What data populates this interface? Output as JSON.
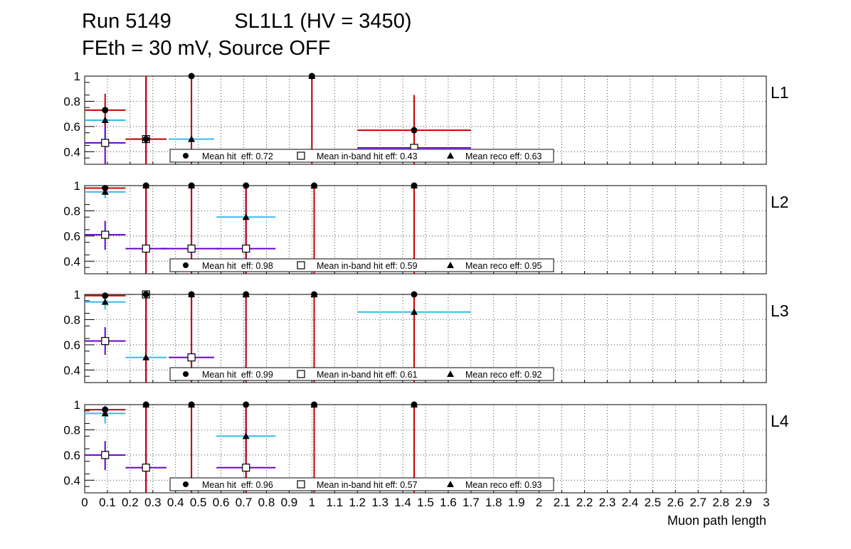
{
  "title_line1": "Run 5149           SL1L1 (HV = 3450)",
  "title_line2": "FEth = 30 mV, Source OFF",
  "colors": {
    "hit": "#cc0000",
    "inband": "#6600cc",
    "reco": "#33bbee",
    "marker": "#000000"
  },
  "chart_data": {
    "type": "scatter",
    "xlabel": "Muon path length",
    "xlim": [
      0,
      3
    ],
    "ylim": [
      0.3,
      1.0
    ],
    "x_ticks": [
      "0",
      "0.1",
      "0.2",
      "0.3",
      "0.4",
      "0.5",
      "0.6",
      "0.7",
      "0.8",
      "0.9",
      "1",
      "1.1",
      "1.2",
      "1.3",
      "1.4",
      "1.5",
      "1.6",
      "1.7",
      "1.8",
      "1.9",
      "2",
      "2.1",
      "2.2",
      "2.3",
      "2.4",
      "2.5",
      "2.6",
      "2.7",
      "2.8",
      "2.9",
      "3"
    ],
    "y_ticks": [
      "0.4",
      "0.6",
      "0.8",
      "1"
    ],
    "grid": true,
    "legend_placement": "bottom-center",
    "panels": [
      {
        "label": "L1",
        "legend": [
          "Mean hit  eff: 0.72",
          "Mean in-band hit eff: 0.43",
          "Mean reco eff: 0.63"
        ],
        "hit": [
          {
            "x": 0.09,
            "xerr": 0.09,
            "y": 0.73,
            "ylo": 0.6,
            "yhi": 0.86
          },
          {
            "x": 0.27,
            "xerr": 0.09,
            "y": 0.5,
            "ylo": 0.3,
            "yhi": 1.0
          },
          {
            "x": 0.47,
            "xerr": 0.0,
            "y": 1.0,
            "ylo": 0.3,
            "yhi": 1.0
          },
          {
            "x": 1.0,
            "xerr": 0.0,
            "y": 1.0,
            "ylo": 0.3,
            "yhi": 1.0
          },
          {
            "x": 1.45,
            "xerr": 0.25,
            "y": 0.57,
            "ylo": 0.3,
            "yhi": 0.85
          }
        ],
        "inband": [
          {
            "x": 0.09,
            "xerr": 0.09,
            "y": 0.47,
            "ylo": 0.3,
            "yhi": 0.62
          },
          {
            "x": 0.27,
            "xerr": 0.0,
            "y": 0.5,
            "ylo": 0.3,
            "yhi": 1.0
          },
          {
            "x": 1.45,
            "xerr": 0.25,
            "y": 0.43,
            "ylo": 0.3,
            "yhi": 0.72
          }
        ],
        "reco": [
          {
            "x": 0.09,
            "xerr": 0.09,
            "y": 0.65,
            "ylo": 0.5,
            "yhi": 0.8
          },
          {
            "x": 0.27,
            "xerr": 0.09,
            "y": 0.5,
            "ylo": 0.3,
            "yhi": 1.0
          },
          {
            "x": 0.47,
            "xerr": 0.1,
            "y": 0.5,
            "ylo": 0.3,
            "yhi": 1.0
          },
          {
            "x": 1.0,
            "xerr": 0.0,
            "y": 1.0,
            "ylo": 0.3,
            "yhi": 1.0
          },
          {
            "x": 1.45,
            "xerr": 0.25,
            "y": 0.43,
            "ylo": 0.3,
            "yhi": 0.85
          }
        ]
      },
      {
        "label": "L2",
        "legend": [
          "Mean hit  eff: 0.98",
          "Mean in-band hit eff: 0.59",
          "Mean reco eff: 0.95"
        ],
        "hit": [
          {
            "x": 0.09,
            "xerr": 0.09,
            "y": 0.98,
            "ylo": 0.95,
            "yhi": 1.0
          },
          {
            "x": 0.27,
            "xerr": 0.0,
            "y": 1.0,
            "ylo": 0.3,
            "yhi": 1.0
          },
          {
            "x": 0.47,
            "xerr": 0.0,
            "y": 1.0,
            "ylo": 0.3,
            "yhi": 1.0
          },
          {
            "x": 0.71,
            "xerr": 0.0,
            "y": 1.0,
            "ylo": 0.3,
            "yhi": 1.0
          },
          {
            "x": 1.01,
            "xerr": 0.0,
            "y": 1.0,
            "ylo": 0.3,
            "yhi": 1.0
          },
          {
            "x": 1.45,
            "xerr": 0.0,
            "y": 1.0,
            "ylo": 0.3,
            "yhi": 1.0
          }
        ],
        "inband": [
          {
            "x": 0.09,
            "xerr": 0.09,
            "y": 0.61,
            "ylo": 0.49,
            "yhi": 0.72
          },
          {
            "x": 0.27,
            "xerr": 0.09,
            "y": 0.5,
            "ylo": 0.3,
            "yhi": 1.0
          },
          {
            "x": 0.47,
            "xerr": 0.13,
            "y": 0.5,
            "ylo": 0.3,
            "yhi": 1.0
          },
          {
            "x": 0.71,
            "xerr": 0.13,
            "y": 0.5,
            "ylo": 0.3,
            "yhi": 1.0
          }
        ],
        "reco": [
          {
            "x": 0.09,
            "xerr": 0.09,
            "y": 0.95,
            "ylo": 0.9,
            "yhi": 0.98
          },
          {
            "x": 0.27,
            "xerr": 0.0,
            "y": 1.0,
            "ylo": 0.3,
            "yhi": 1.0
          },
          {
            "x": 0.47,
            "xerr": 0.0,
            "y": 1.0,
            "ylo": 0.3,
            "yhi": 1.0
          },
          {
            "x": 0.71,
            "xerr": 0.13,
            "y": 0.75,
            "ylo": 0.3,
            "yhi": 1.0
          },
          {
            "x": 1.01,
            "xerr": 0.0,
            "y": 1.0,
            "ylo": 0.3,
            "yhi": 1.0
          },
          {
            "x": 1.45,
            "xerr": 0.0,
            "y": 1.0,
            "ylo": 0.3,
            "yhi": 1.0
          }
        ]
      },
      {
        "label": "L3",
        "legend": [
          "Mean hit  eff: 0.99",
          "Mean in-band hit eff: 0.61",
          "Mean reco eff: 0.92"
        ],
        "hit": [
          {
            "x": 0.09,
            "xerr": 0.09,
            "y": 0.99,
            "ylo": 0.97,
            "yhi": 1.0
          },
          {
            "x": 0.27,
            "xerr": 0.0,
            "y": 1.0,
            "ylo": 0.3,
            "yhi": 1.0
          },
          {
            "x": 0.47,
            "xerr": 0.0,
            "y": 1.0,
            "ylo": 0.3,
            "yhi": 1.0
          },
          {
            "x": 0.71,
            "xerr": 0.0,
            "y": 1.0,
            "ylo": 0.3,
            "yhi": 1.0
          },
          {
            "x": 1.01,
            "xerr": 0.0,
            "y": 1.0,
            "ylo": 0.3,
            "yhi": 1.0
          },
          {
            "x": 1.45,
            "xerr": 0.0,
            "y": 1.0,
            "ylo": 0.3,
            "yhi": 1.0
          }
        ],
        "inband": [
          {
            "x": 0.09,
            "xerr": 0.09,
            "y": 0.63,
            "ylo": 0.52,
            "yhi": 0.74
          },
          {
            "x": 0.27,
            "xerr": 0.0,
            "y": 1.0,
            "ylo": 0.3,
            "yhi": 1.0
          },
          {
            "x": 0.47,
            "xerr": 0.1,
            "y": 0.5,
            "ylo": 0.3,
            "yhi": 1.0
          }
        ],
        "reco": [
          {
            "x": 0.09,
            "xerr": 0.09,
            "y": 0.94,
            "ylo": 0.88,
            "yhi": 0.98
          },
          {
            "x": 0.27,
            "xerr": 0.09,
            "y": 0.5,
            "ylo": 0.3,
            "yhi": 1.0
          },
          {
            "x": 0.47,
            "xerr": 0.0,
            "y": 1.0,
            "ylo": 0.3,
            "yhi": 1.0
          },
          {
            "x": 0.71,
            "xerr": 0.0,
            "y": 1.0,
            "ylo": 0.3,
            "yhi": 1.0
          },
          {
            "x": 1.01,
            "xerr": 0.0,
            "y": 1.0,
            "ylo": 0.3,
            "yhi": 1.0
          },
          {
            "x": 1.45,
            "xerr": 0.25,
            "y": 0.86,
            "ylo": 0.3,
            "yhi": 1.0
          }
        ]
      },
      {
        "label": "L4",
        "legend": [
          "Mean hit  eff: 0.96",
          "Mean in-band hit eff: 0.57",
          "Mean reco eff: 0.93"
        ],
        "hit": [
          {
            "x": 0.09,
            "xerr": 0.09,
            "y": 0.96,
            "ylo": 0.92,
            "yhi": 0.99
          },
          {
            "x": 0.27,
            "xerr": 0.0,
            "y": 1.0,
            "ylo": 0.3,
            "yhi": 1.0
          },
          {
            "x": 0.47,
            "xerr": 0.0,
            "y": 1.0,
            "ylo": 0.3,
            "yhi": 1.0
          },
          {
            "x": 0.71,
            "xerr": 0.0,
            "y": 1.0,
            "ylo": 0.3,
            "yhi": 1.0
          },
          {
            "x": 1.01,
            "xerr": 0.0,
            "y": 1.0,
            "ylo": 0.3,
            "yhi": 1.0
          },
          {
            "x": 1.45,
            "xerr": 0.0,
            "y": 1.0,
            "ylo": 0.3,
            "yhi": 1.0
          }
        ],
        "inband": [
          {
            "x": 0.09,
            "xerr": 0.09,
            "y": 0.6,
            "ylo": 0.48,
            "yhi": 0.71
          },
          {
            "x": 0.27,
            "xerr": 0.09,
            "y": 0.5,
            "ylo": 0.3,
            "yhi": 1.0
          },
          {
            "x": 0.71,
            "xerr": 0.13,
            "y": 0.5,
            "ylo": 0.3,
            "yhi": 1.0
          }
        ],
        "reco": [
          {
            "x": 0.09,
            "xerr": 0.09,
            "y": 0.93,
            "ylo": 0.85,
            "yhi": 0.98
          },
          {
            "x": 0.27,
            "xerr": 0.0,
            "y": 1.0,
            "ylo": 0.3,
            "yhi": 1.0
          },
          {
            "x": 0.47,
            "xerr": 0.0,
            "y": 1.0,
            "ylo": 0.3,
            "yhi": 1.0
          },
          {
            "x": 0.71,
            "xerr": 0.13,
            "y": 0.75,
            "ylo": 0.3,
            "yhi": 1.0
          },
          {
            "x": 1.01,
            "xerr": 0.0,
            "y": 1.0,
            "ylo": 0.3,
            "yhi": 1.0
          },
          {
            "x": 1.45,
            "xerr": 0.0,
            "y": 1.0,
            "ylo": 0.3,
            "yhi": 1.0
          }
        ]
      }
    ]
  }
}
